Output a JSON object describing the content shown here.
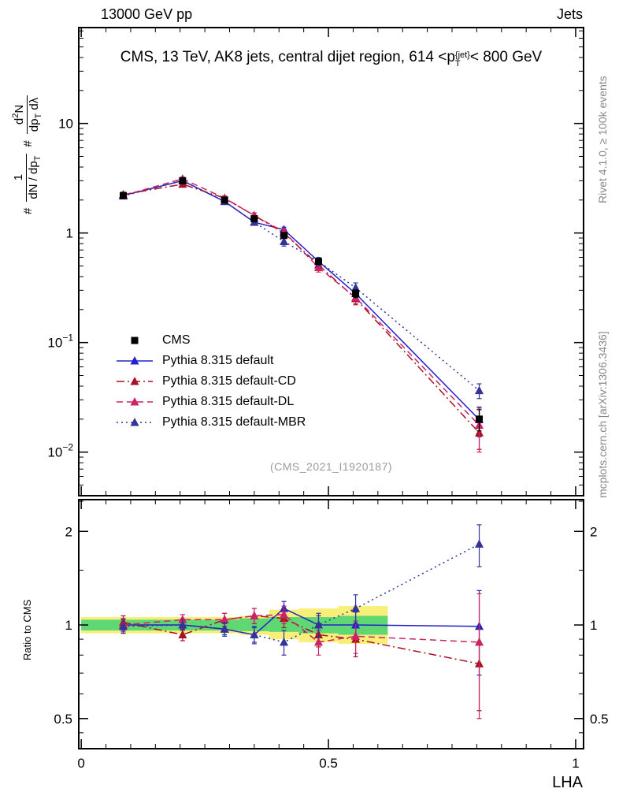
{
  "header": {
    "left": "13000 GeV pp",
    "right": "Jets"
  },
  "title": {
    "pre": "CMS, 13 TeV, AK8 jets, central dijet region, 614 <p",
    "sup": "{jet}",
    "sub": "T",
    "post": "< 800 GeV"
  },
  "side_notes": {
    "top": "Rivet 4.1.0, ≥ 100k events",
    "bottom": "mcplots.cern.ch [arXiv:1306.3436]"
  },
  "watermark": "(CMS_2021_I1920187)",
  "axes": {
    "x_title": "LHA",
    "ratio_title": "Ratio to CMS",
    "y_title": {
      "hash1": "#",
      "f1_num": "1",
      "f1_den_pre": "dN / dp",
      "f1_den_sub": "T",
      "hash2": "#",
      "f2_num_pre": "d",
      "f2_num_sup": "2",
      "f2_num_post": "N",
      "f2_den_pre": "dp",
      "f2_den_sub": "T",
      "f2_den_post": " dλ"
    }
  },
  "chart_data": {
    "type": "line",
    "title": "CMS, 13 TeV, AK8 jets, central dijet region, 614 <p^{jet}_T< 800 GeV",
    "xlabel": "LHA",
    "ylabel": "# 1/(dN/dp_T) # d^2N/(dp_T dλ)",
    "x_points": [
      0.085,
      0.205,
      0.29,
      0.35,
      0.41,
      0.48,
      0.555,
      0.805
    ],
    "x_range": [
      -0.005,
      1.016
    ],
    "x_ticks": [
      {
        "v": 0,
        "label": "0"
      },
      {
        "v": 0.5,
        "label": "0.5"
      },
      {
        "v": 1,
        "label": "1"
      }
    ],
    "main_panel": {
      "scale": "log",
      "range": [
        0.004,
        75
      ],
      "ticks": [
        {
          "v": 10,
          "base": "10",
          "exp": ""
        },
        {
          "v": 1,
          "base": "1",
          "exp": ""
        },
        {
          "v": 0.1,
          "base": "10",
          "exp": "−1"
        },
        {
          "v": 0.01,
          "base": "10",
          "exp": "−2"
        }
      ]
    },
    "ratio_panel": {
      "scale": "log",
      "range": [
        0.4,
        2.53
      ],
      "ticks": [
        {
          "v": 0.5,
          "label": "0.5"
        },
        {
          "v": 1,
          "label": "1"
        },
        {
          "v": 2,
          "label": "2"
        }
      ],
      "minor_ticks": [
        0.45,
        0.6,
        0.7,
        0.8,
        0.9,
        1.5,
        2.5
      ]
    },
    "reference": {
      "name": "CMS",
      "color": "#000000",
      "marker": "square",
      "values": [
        2.2,
        3.0,
        2.0,
        1.35,
        0.95,
        0.55,
        0.28,
        0.02
      ],
      "rel_err": [
        0.03,
        0.03,
        0.03,
        0.04,
        0.05,
        0.06,
        0.08,
        0.22
      ]
    },
    "series": [
      {
        "name": "Pythia 8.315 default",
        "color": "#2222cc",
        "marker": "triangle",
        "line": "solid",
        "ratio": [
          1.0,
          1.0,
          0.97,
          0.93,
          1.13,
          1.0,
          1.0,
          0.99
        ],
        "ratio_err": [
          0.04,
          0.03,
          0.04,
          0.05,
          0.06,
          0.07,
          0.1,
          0.3
        ]
      },
      {
        "name": "Pythia 8.315 default-CD",
        "color": "#aa1122",
        "marker": "triangle",
        "line": "dashdot",
        "ratio": [
          1.02,
          0.93,
          1.04,
          1.07,
          1.05,
          0.93,
          0.9,
          0.75
        ],
        "ratio_err": [
          0.05,
          0.04,
          0.05,
          0.06,
          0.07,
          0.08,
          0.11,
          0.22
        ]
      },
      {
        "name": "Pythia 8.315 default-DL",
        "color": "#cc2266",
        "marker": "triangle",
        "line": "dashed",
        "ratio": [
          1.0,
          1.04,
          1.04,
          1.07,
          1.08,
          0.88,
          0.92,
          0.88
        ],
        "ratio_err": [
          0.05,
          0.04,
          0.05,
          0.06,
          0.07,
          0.08,
          0.11,
          0.38
        ]
      },
      {
        "name": "Pythia 8.315 default-MBR",
        "color": "#333399",
        "marker": "triangle",
        "line": "dotted",
        "ratio": [
          0.99,
          1.0,
          0.97,
          0.93,
          0.88,
          1.0,
          1.13,
          1.82
        ],
        "ratio_err": [
          0.05,
          0.04,
          0.05,
          0.06,
          0.08,
          0.09,
          0.12,
          0.28
        ]
      }
    ],
    "uncertainty_bands": {
      "yellow_color": "#f7ef77",
      "green_color": "#5fd873",
      "bin_edges": [
        0.0,
        0.13,
        0.25,
        0.32,
        0.38,
        0.44,
        0.52,
        0.62
      ],
      "yellow": [
        [
          0.94,
          1.06
        ],
        [
          0.94,
          1.06
        ],
        [
          0.94,
          1.06
        ],
        [
          0.93,
          1.07
        ],
        [
          0.9,
          1.12
        ],
        [
          0.88,
          1.13
        ],
        [
          0.87,
          1.15
        ]
      ],
      "green": [
        [
          0.96,
          1.04
        ],
        [
          0.96,
          1.04
        ],
        [
          0.96,
          1.04
        ],
        [
          0.955,
          1.05
        ],
        [
          0.95,
          1.06
        ],
        [
          0.94,
          1.06
        ],
        [
          0.93,
          1.07
        ]
      ]
    }
  }
}
